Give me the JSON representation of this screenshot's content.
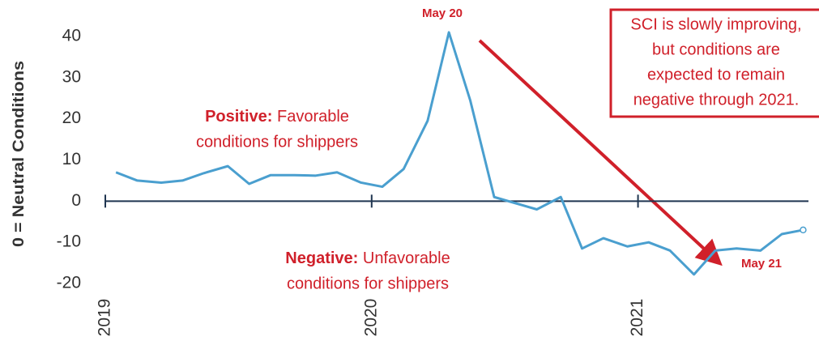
{
  "chart_data": {
    "type": "line",
    "y_label": "0 = Neutral Conditions",
    "x": [
      2019.04,
      2019.12,
      2019.21,
      2019.29,
      2019.37,
      2019.46,
      2019.54,
      2019.62,
      2019.71,
      2019.79,
      2019.87,
      2019.96,
      2020.04,
      2020.12,
      2020.21,
      2020.29,
      2020.37,
      2020.46,
      2020.54,
      2020.62,
      2020.71,
      2020.79,
      2020.87,
      2020.96,
      2021.04,
      2021.12,
      2021.21,
      2021.29,
      2021.37,
      2021.46,
      2021.54,
      2021.62
    ],
    "series": [
      {
        "color": "#4a9fcf",
        "values": [
          7,
          5,
          4.5,
          5,
          6.8,
          8.5,
          4.2,
          6.3,
          6.3,
          6.2,
          7,
          4.5,
          3.5,
          7.8,
          19.5,
          41,
          24.5,
          1,
          -0.5,
          -2,
          1,
          -11.5,
          -9,
          -11,
          -10,
          -12,
          -17.8,
          -12,
          -11.5,
          -12,
          -8,
          -7
        ]
      }
    ],
    "xlim": [
      2019,
      2021.64
    ],
    "xticks": [
      2019,
      2020,
      2021
    ],
    "ylim": [
      -20,
      40
    ],
    "yticks": [
      -20,
      -10,
      0,
      10,
      20,
      30,
      40
    ],
    "grid": false,
    "annotations": {
      "peak": "May 20",
      "end": "May 21",
      "positive": {
        "bold": "Positive:",
        "text": " Favorable",
        "line2": "conditions for shippers"
      },
      "negative": {
        "bold": "Negative:",
        "text": " Unfavorable",
        "line2": "conditions for shippers"
      },
      "callout": [
        "SCI is slowly improving,",
        "but conditions are",
        "expected to remain",
        "negative through 2021."
      ]
    }
  }
}
